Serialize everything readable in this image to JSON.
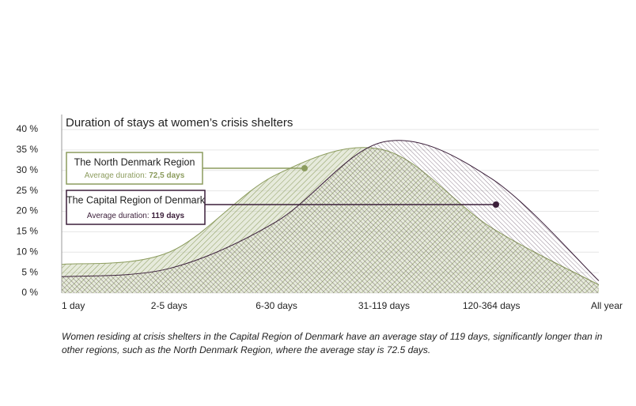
{
  "chart_data": {
    "type": "area",
    "title": "Duration of stays at women’s crisis shelters",
    "categories": [
      "1 day",
      "2-5 days",
      "6-30 days",
      "31-119 days",
      "120-364 days",
      "All year"
    ],
    "series": [
      {
        "name": "The North Denmark Region",
        "color": "#8c9c5e",
        "values": [
          7,
          10,
          29,
          35,
          16,
          2
        ],
        "note_label": "Average duration:",
        "note_value": "72,5 days"
      },
      {
        "name": "The Capital Region of Denmark",
        "color": "#3b1f3a",
        "values": [
          4,
          6,
          17.5,
          37,
          28,
          3
        ],
        "note_label": "Average duration:",
        "note_value": "119 days"
      }
    ],
    "ylim": [
      0,
      40
    ],
    "yticks": [
      {
        "value": 0,
        "label": "0 %"
      },
      {
        "value": 5,
        "label": "5 %"
      },
      {
        "value": 10,
        "label": "10 %"
      },
      {
        "value": 15,
        "label": "15 %"
      },
      {
        "value": 20,
        "label": "20 %"
      },
      {
        "value": 25,
        "label": "25 %"
      },
      {
        "value": 30,
        "label": "30 %"
      },
      {
        "value": 35,
        "label": "35 %"
      },
      {
        "value": 40,
        "label": "40 %"
      }
    ],
    "grid": true,
    "footnote": "Women residing at crisis shelters in the Capital Region of Denmark have an average stay of 119 days, significantly longer than in other regions, such as the North Denmark Region, where the average stay is 72.5 days."
  }
}
